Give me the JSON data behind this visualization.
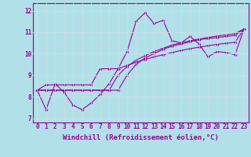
{
  "title": "",
  "xlabel": "Windchill (Refroidissement éolien,°C)",
  "ylabel": "",
  "bg_color": "#b2e0e8",
  "line_color": "#990099",
  "grid_color": "#d0eef2",
  "x_ticks": [
    0,
    1,
    2,
    3,
    4,
    5,
    6,
    7,
    8,
    9,
    10,
    11,
    12,
    13,
    14,
    15,
    16,
    17,
    18,
    19,
    20,
    21,
    22,
    23
  ],
  "y_ticks": [
    7,
    8,
    9,
    10,
    11,
    12
  ],
  "xlim": [
    -0.5,
    23.5
  ],
  "ylim": [
    6.8,
    12.35
  ],
  "series": [
    [
      8.3,
      7.4,
      8.6,
      8.2,
      7.6,
      7.4,
      7.7,
      8.1,
      8.6,
      9.3,
      10.1,
      11.5,
      11.9,
      11.4,
      11.55,
      10.6,
      10.5,
      10.8,
      10.45,
      9.85,
      10.1,
      10.05,
      9.95,
      11.15
    ],
    [
      8.3,
      8.55,
      8.55,
      8.55,
      8.55,
      8.55,
      8.55,
      9.3,
      9.3,
      9.3,
      9.45,
      9.6,
      9.73,
      9.85,
      9.95,
      10.05,
      10.15,
      10.23,
      10.3,
      10.37,
      10.43,
      10.48,
      10.53,
      11.15
    ],
    [
      8.3,
      8.3,
      8.3,
      8.3,
      8.3,
      8.3,
      8.3,
      8.3,
      8.3,
      9.0,
      9.4,
      9.7,
      9.9,
      10.1,
      10.25,
      10.4,
      10.5,
      10.6,
      10.68,
      10.75,
      10.82,
      10.87,
      10.93,
      11.15
    ],
    [
      8.3,
      8.3,
      8.3,
      8.3,
      8.3,
      8.3,
      8.3,
      8.3,
      8.3,
      8.3,
      9.0,
      9.5,
      9.8,
      10.0,
      10.2,
      10.35,
      10.45,
      10.55,
      10.65,
      10.7,
      10.75,
      10.8,
      10.85,
      11.15
    ]
  ],
  "tick_fontsize": 5.5,
  "xlabel_fontsize": 6.5,
  "marker_size": 2.0,
  "line_width": 0.8
}
